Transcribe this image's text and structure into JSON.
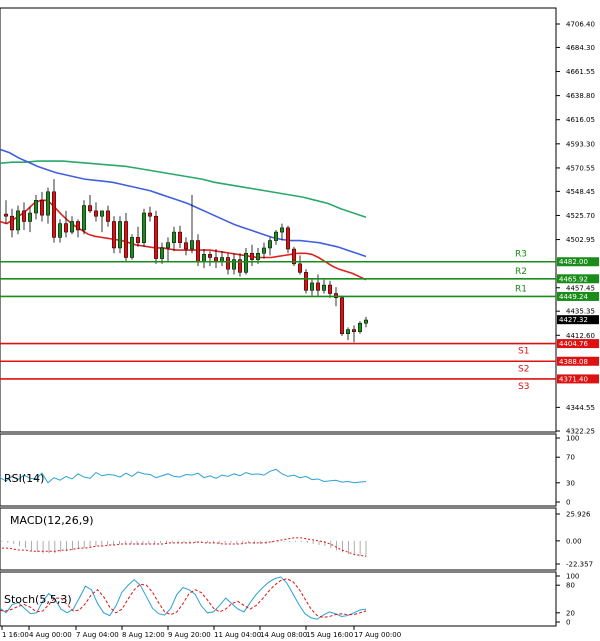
{
  "chart_data": {
    "type": "candlestick",
    "colors": {
      "up": "#1f8a1f",
      "down": "#dd1111",
      "ma_fast": "#e02020",
      "ma_mid": "#4060e0",
      "ma_slow": "#2aa86a",
      "resistance": "#1a8c1a",
      "support": "#dd1111",
      "oscillator": "#2aa0d8",
      "signal": "#dd1111",
      "grid": "#000000"
    },
    "price_axis": {
      "ticks": [
        "4706.40",
        "4684.30",
        "4661.55",
        "4638.80",
        "4616.05",
        "4593.30",
        "4570.55",
        "4548.45",
        "4525.70",
        "4502.95",
        "4457.45",
        "4435.35",
        "4412.60",
        "4344.55",
        "4322.25"
      ],
      "ylim": [
        4322.25,
        4706.4
      ]
    },
    "x_axis": {
      "ticks": [
        "1 16:00",
        "4 Aug 00:00",
        "7 Aug 04:00",
        "8 Aug 12:00",
        "9 Aug 20:00",
        "11 Aug 04:00",
        "14 Aug 08:00",
        "15 Aug 16:00",
        "17 Aug 00:00"
      ]
    },
    "levels": [
      {
        "name": "R3",
        "value": 4482.0,
        "label": "4482.00",
        "kind": "resistance"
      },
      {
        "name": "R2",
        "value": 4465.92,
        "label": "4465.92",
        "kind": "resistance"
      },
      {
        "name": "R1",
        "value": 4449.24,
        "label": "4449.24",
        "kind": "resistance"
      },
      {
        "name": "S1",
        "value": 4404.76,
        "label": "4404.76",
        "kind": "support"
      },
      {
        "name": "S2",
        "value": 4388.08,
        "label": "4388.08",
        "kind": "support"
      },
      {
        "name": "S3",
        "value": 4371.4,
        "label": "4371.40",
        "kind": "support"
      }
    ],
    "current_price": "4427.32",
    "candles": [
      [
        4527,
        4540,
        4518,
        4525
      ],
      [
        4525,
        4532,
        4505,
        4512
      ],
      [
        4512,
        4535,
        4508,
        4530
      ],
      [
        4530,
        4538,
        4512,
        4520
      ],
      [
        4520,
        4534,
        4510,
        4528
      ],
      [
        4528,
        4545,
        4522,
        4540
      ],
      [
        4540,
        4548,
        4520,
        4526
      ],
      [
        4526,
        4552,
        4518,
        4548
      ],
      [
        4548,
        4560,
        4500,
        4505
      ],
      [
        4505,
        4522,
        4500,
        4518
      ],
      [
        4518,
        4530,
        4505,
        4510
      ],
      [
        4510,
        4525,
        4508,
        4520
      ],
      [
        4520,
        4522,
        4505,
        4512
      ],
      [
        4512,
        4540,
        4508,
        4535
      ],
      [
        4535,
        4545,
        4528,
        4530
      ],
      [
        4530,
        4538,
        4520,
        4525
      ],
      [
        4525,
        4530,
        4510,
        4530
      ],
      [
        4530,
        4535,
        4515,
        4520
      ],
      [
        4520,
        4525,
        4490,
        4495
      ],
      [
        4495,
        4525,
        4490,
        4520
      ],
      [
        4520,
        4528,
        4482,
        4486
      ],
      [
        4486,
        4508,
        4484,
        4505
      ],
      [
        4505,
        4515,
        4496,
        4500
      ],
      [
        4500,
        4532,
        4496,
        4528
      ],
      [
        4528,
        4534,
        4520,
        4525
      ],
      [
        4525,
        4530,
        4480,
        4485
      ],
      [
        4485,
        4500,
        4480,
        4495
      ],
      [
        4495,
        4505,
        4482,
        4500
      ],
      [
        4500,
        4515,
        4492,
        4510
      ],
      [
        4510,
        4516,
        4495,
        4500
      ],
      [
        4500,
        4505,
        4488,
        4494
      ],
      [
        4494,
        4545,
        4490,
        4502
      ],
      [
        4502,
        4508,
        4478,
        4482
      ],
      [
        4482,
        4494,
        4476,
        4489
      ],
      [
        4489,
        4492,
        4478,
        4486
      ],
      [
        4486,
        4494,
        4476,
        4482
      ],
      [
        4482,
        4492,
        4478,
        4486
      ],
      [
        4486,
        4490,
        4470,
        4475
      ],
      [
        4475,
        4490,
        4470,
        4484
      ],
      [
        4484,
        4490,
        4468,
        4472
      ],
      [
        4472,
        4495,
        4470,
        4490
      ],
      [
        4490,
        4498,
        4478,
        4484
      ],
      [
        4484,
        4495,
        4480,
        4490
      ],
      [
        4490,
        4500,
        4485,
        4495
      ],
      [
        4495,
        4505,
        4488,
        4502
      ],
      [
        4502,
        4512,
        4498,
        4510
      ],
      [
        4510,
        4518,
        4502,
        4514
      ],
      [
        4514,
        4516,
        4490,
        4494
      ],
      [
        4494,
        4496,
        4478,
        4480
      ],
      [
        4480,
        4488,
        4470,
        4472
      ],
      [
        4472,
        4475,
        4452,
        4455
      ],
      [
        4455,
        4466,
        4450,
        4462
      ],
      [
        4462,
        4470,
        4450,
        4455
      ],
      [
        4455,
        4465,
        4452,
        4460
      ],
      [
        4460,
        4464,
        4448,
        4452
      ],
      [
        4452,
        4458,
        4440,
        4448
      ],
      [
        4448,
        4450,
        4412,
        4414
      ],
      [
        4414,
        4420,
        4408,
        4418
      ],
      [
        4418,
        4422,
        4406,
        4416
      ],
      [
        4416,
        4426,
        4414,
        4424
      ],
      [
        4424,
        4430,
        4420,
        4427
      ]
    ],
    "ma_fast": [
      4520,
      4518,
      4522,
      4526,
      4531,
      4537,
      4540,
      4540,
      4534,
      4527,
      4521,
      4516,
      4512,
      4508,
      4506,
      4505,
      4504,
      4503,
      4502,
      4500,
      4498,
      4497,
      4496,
      4495,
      4495,
      4494,
      4493,
      4493,
      4493,
      4493,
      4493,
      4493,
      4492,
      4491,
      4490,
      4489,
      4488,
      4487,
      4486,
      4486,
      4486,
      4487,
      4488,
      4489,
      4490,
      4490,
      4489,
      4486,
      4482,
      4478,
      4475,
      4473,
      4471,
      4468,
      4465
    ],
    "ma_mid": [
      4588,
      4585,
      4580,
      4576,
      4572,
      4569,
      4566,
      4564,
      4562,
      4560,
      4559,
      4558,
      4557,
      4555,
      4553,
      4551,
      4549,
      4546,
      4543,
      4540,
      4537,
      4533,
      4529,
      4525,
      4521,
      4517,
      4514,
      4511,
      4508,
      4505,
      4503,
      4502,
      4502,
      4501,
      4500,
      4498,
      4496,
      4493,
      4490,
      4487
    ],
    "ma_slow": [
      4575,
      4576,
      4576,
      4577,
      4577,
      4577,
      4576,
      4575,
      4574,
      4573,
      4572,
      4570,
      4568,
      4566,
      4564,
      4562,
      4560,
      4557,
      4555,
      4553,
      4551,
      4549,
      4547,
      4545,
      4543,
      4540,
      4537,
      4532,
      4528,
      4524
    ],
    "rsi": {
      "label": "RSI(14)",
      "ticks": [
        "100",
        "70",
        "30",
        "0"
      ],
      "ylim": [
        0,
        100
      ],
      "values": [
        38,
        33,
        40,
        35,
        42,
        37,
        36,
        45,
        30,
        38,
        34,
        40,
        36,
        44,
        39,
        37,
        46,
        41,
        43,
        42,
        39,
        45,
        40,
        47,
        44,
        43,
        38,
        41,
        44,
        40,
        39,
        43,
        42,
        45,
        38,
        41,
        37,
        42,
        40,
        44,
        41,
        46,
        43,
        44,
        42,
        48,
        51,
        44,
        40,
        42,
        38,
        40,
        35,
        36,
        32,
        33,
        34,
        31,
        32,
        30,
        31,
        32
      ]
    },
    "macd": {
      "label": "MACD(12,26,9)",
      "ticks": [
        "25.926",
        "0.00",
        "-22.357"
      ],
      "ylim": [
        -22.357,
        25.926
      ],
      "histogram": [
        -1,
        -2,
        -3,
        -5,
        -7,
        -10,
        -11,
        -12,
        -12,
        -12,
        -11,
        -10,
        -9,
        -8,
        -7,
        -6,
        -5,
        -5,
        -4,
        -4,
        -3,
        -3,
        -3,
        -4,
        -4,
        -3,
        -3,
        -2,
        -2,
        -2,
        -2,
        -2,
        -2,
        -2,
        -1,
        -2,
        -2,
        -3,
        -2,
        -2,
        -3,
        -3,
        -2,
        -3,
        -3,
        -3,
        -2,
        -1,
        -1,
        -1,
        -1,
        -1,
        -2,
        -3,
        -4,
        -5,
        -7,
        -9,
        -11,
        -13,
        -14,
        -14,
        -15
      ],
      "signal": [
        -7,
        -7,
        -8,
        -9,
        -9,
        -10,
        -10,
        -10,
        -10,
        -10,
        -9,
        -9,
        -8,
        -7,
        -7,
        -6,
        -5,
        -5,
        -4,
        -4,
        -3,
        -3,
        -3,
        -3,
        -3,
        -3,
        -3,
        -3,
        -2,
        -2,
        -2,
        -2,
        -2,
        -1,
        -2,
        -2,
        -2,
        -3,
        -3,
        -3,
        -3,
        -2,
        -2,
        -2,
        -2,
        -1,
        0,
        1,
        2,
        3,
        3,
        2,
        1,
        0,
        -1,
        -3,
        -6,
        -9,
        -11,
        -13,
        -14,
        -15
      ]
    },
    "stoch": {
      "label": "Stoch(5,5,3)",
      "ticks": [
        "100",
        "80",
        "20",
        "0"
      ],
      "ylim": [
        0,
        100
      ],
      "k": [
        30,
        20,
        38,
        42,
        30,
        18,
        20,
        45,
        62,
        50,
        28,
        20,
        28,
        52,
        78,
        70,
        40,
        20,
        14,
        35,
        65,
        80,
        92,
        80,
        55,
        30,
        18,
        15,
        30,
        60,
        75,
        70,
        60,
        35,
        20,
        22,
        36,
        52,
        40,
        28,
        22,
        42,
        60,
        74,
        86,
        94,
        98,
        85,
        62,
        38,
        18,
        9,
        6,
        15,
        22,
        18,
        12,
        14,
        20,
        26,
        28
      ],
      "d": [
        25,
        24,
        28,
        34,
        38,
        32,
        22,
        24,
        38,
        52,
        52,
        38,
        24,
        26,
        40,
        60,
        70,
        55,
        32,
        20,
        28,
        50,
        70,
        82,
        80,
        65,
        42,
        22,
        16,
        22,
        40,
        62,
        70,
        64,
        48,
        30,
        22,
        28,
        40,
        45,
        36,
        28,
        36,
        50,
        66,
        80,
        90,
        94,
        88,
        72,
        50,
        28,
        14,
        10,
        12,
        16,
        18,
        16,
        16,
        20,
        24
      ]
    }
  }
}
